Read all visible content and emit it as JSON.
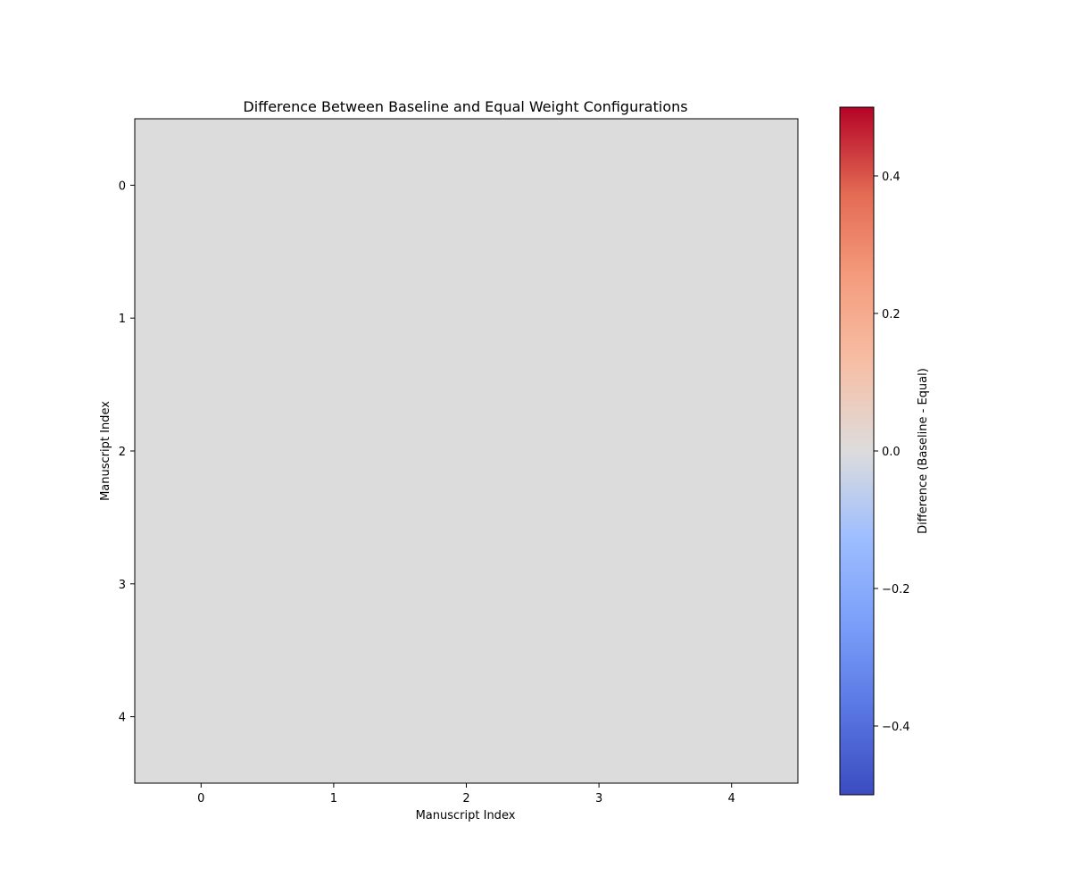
{
  "chart_data": {
    "type": "heatmap",
    "title": "Difference Between Baseline and Equal Weight Configurations",
    "xlabel": "Manuscript Index",
    "ylabel": "Manuscript Index",
    "x_ticks": [
      "0",
      "1",
      "2",
      "3",
      "4"
    ],
    "y_ticks": [
      "0",
      "1",
      "2",
      "3",
      "4"
    ],
    "values": [
      [
        0,
        0,
        0,
        0,
        0
      ],
      [
        0,
        0,
        0,
        0,
        0
      ],
      [
        0,
        0,
        0,
        0,
        0
      ],
      [
        0,
        0,
        0,
        0,
        0
      ],
      [
        0,
        0,
        0,
        0,
        0
      ]
    ],
    "colormap": "coolwarm",
    "colorbar": {
      "label": "Difference (Baseline - Equal)",
      "range": [
        -0.5,
        0.5
      ],
      "ticks": [
        -0.4,
        -0.2,
        0.0,
        0.2,
        0.4
      ],
      "tick_labels": [
        "−0.4",
        "−0.2",
        "0.0",
        "0.2",
        "0.4"
      ]
    },
    "grid": false
  }
}
